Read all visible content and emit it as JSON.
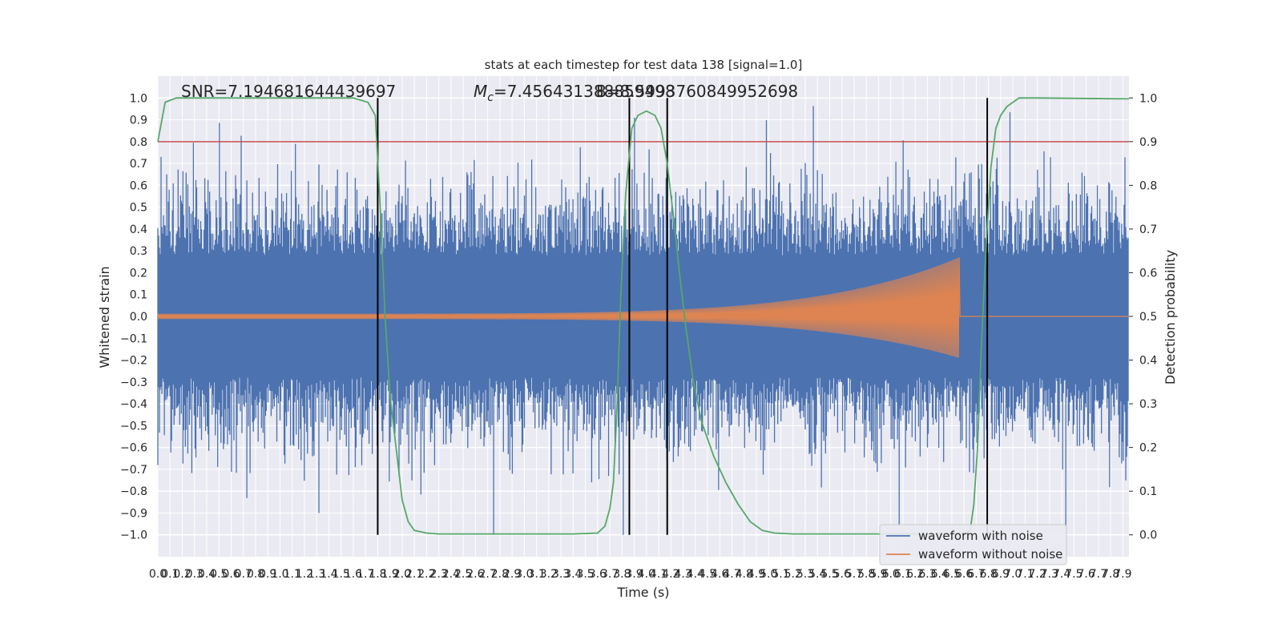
{
  "chart_data": {
    "type": "line",
    "title": "stats at each timestep for test data 138 [signal=1.0]",
    "xlabel": "Time (s)",
    "ylabel": "Whitened strain",
    "ylabel_right": "Detection probability",
    "xlim": [
      0.0,
      7.95
    ],
    "ylim": [
      -1.1,
      1.1
    ],
    "ylim_right": [
      -0.05,
      1.05
    ],
    "grid": true,
    "legend_position": "lower-right",
    "x_ticks": [
      "0.0",
      "0.1",
      "0.2",
      "0.3",
      "0.4",
      "0.5",
      "0.6",
      "0.7",
      "0.8",
      "0.9",
      "1.0",
      "1.1",
      "1.2",
      "1.3",
      "1.4",
      "1.5",
      "1.6",
      "1.7",
      "1.8",
      "1.9",
      "2.0",
      "2.1",
      "2.2",
      "2.3",
      "2.4",
      "2.5",
      "2.6",
      "2.7",
      "2.8",
      "2.9",
      "3.0",
      "3.1",
      "3.2",
      "3.3",
      "3.4",
      "3.5",
      "3.6",
      "3.7",
      "3.8",
      "3.9",
      "4.0",
      "4.1",
      "4.2",
      "4.3",
      "4.4",
      "4.5",
      "4.6",
      "4.7",
      "4.8",
      "4.9",
      "5.0",
      "5.1",
      "5.2",
      "5.3",
      "5.4",
      "5.5",
      "5.6",
      "5.7",
      "5.8",
      "5.9",
      "6.0",
      "6.1",
      "6.2",
      "6.3",
      "6.4",
      "6.5",
      "6.6",
      "6.7",
      "6.8",
      "6.9",
      "7.0",
      "7.1",
      "7.2",
      "7.3",
      "7.4",
      "7.5",
      "7.6",
      "7.7",
      "7.8",
      "7.9"
    ],
    "y_ticks": [
      "1.0",
      "0.9",
      "0.8",
      "0.7",
      "0.6",
      "0.5",
      "0.4",
      "0.3",
      "0.2",
      "0.1",
      "0.0",
      "−0.1",
      "−0.2",
      "−0.3",
      "−0.4",
      "−0.5",
      "−0.6",
      "−0.7",
      "−0.8",
      "−0.9",
      "−1.0"
    ],
    "y_ticks_right": [
      "1.0",
      "0.9",
      "0.8",
      "0.7",
      "0.6",
      "0.5",
      "0.4",
      "0.3",
      "0.2",
      "0.1",
      "0.0"
    ],
    "annotations": {
      "snr": "SNR=7.194681644439697",
      "mc_symbol": "M",
      "mc_sub": "c",
      "mc_value": "=7.456431388859498",
      "mc_overlap": "8=8.5993760849952698"
    },
    "series": [
      {
        "name": "waveform with noise",
        "color": "#4c72b0",
        "role": "noisy strain, amplitude mostly within ±0.5 with peaks near ±1.0"
      },
      {
        "name": "waveform without noise",
        "color": "#dd8452",
        "role": "chirp signal"
      },
      {
        "name": "",
        "color": "#55a868",
        "role": "detection probability"
      }
    ],
    "chirp": {
      "x_start": 0.0,
      "x_peak": 6.56,
      "amp_start": 0.012,
      "amp_peak": 0.27,
      "amp_min": -0.19
    },
    "detection_probability": {
      "x": [
        0.0,
        0.06,
        0.15,
        0.3,
        1.0,
        1.6,
        1.72,
        1.78,
        1.82,
        1.86,
        1.9,
        1.95,
        2.0,
        2.05,
        2.1,
        2.2,
        2.3,
        2.45,
        2.6,
        3.4,
        3.6,
        3.66,
        3.7,
        3.73,
        3.76,
        3.79,
        3.83,
        3.88,
        3.93,
        4.0,
        4.07,
        4.12,
        4.17,
        4.22,
        4.27,
        4.32,
        4.38,
        4.45,
        4.55,
        4.65,
        4.75,
        4.85,
        4.95,
        5.05,
        5.2,
        5.6,
        6.6,
        6.65,
        6.68,
        6.71,
        6.74,
        6.78,
        6.82,
        6.86,
        6.9,
        6.95,
        7.0,
        7.05,
        7.1,
        7.2,
        7.95
      ],
      "y": [
        0.9,
        0.99,
        1.0,
        1.0,
        1.0,
        1.0,
        0.99,
        0.96,
        0.75,
        0.5,
        0.32,
        0.2,
        0.08,
        0.03,
        0.01,
        0.004,
        0.002,
        0.002,
        0.002,
        0.002,
        0.004,
        0.02,
        0.06,
        0.12,
        0.3,
        0.55,
        0.78,
        0.93,
        0.96,
        0.97,
        0.96,
        0.93,
        0.85,
        0.73,
        0.6,
        0.48,
        0.36,
        0.26,
        0.18,
        0.12,
        0.07,
        0.03,
        0.01,
        0.004,
        0.002,
        0.002,
        0.002,
        0.01,
        0.07,
        0.2,
        0.42,
        0.66,
        0.84,
        0.93,
        0.96,
        0.98,
        0.99,
        1.0,
        1.0,
        1.0,
        0.998
      ]
    },
    "threshold_line": {
      "y": 0.8,
      "color": "#c44e52"
    },
    "vertical_lines_x": [
      1.8,
      3.86,
      4.17,
      6.79
    ]
  }
}
